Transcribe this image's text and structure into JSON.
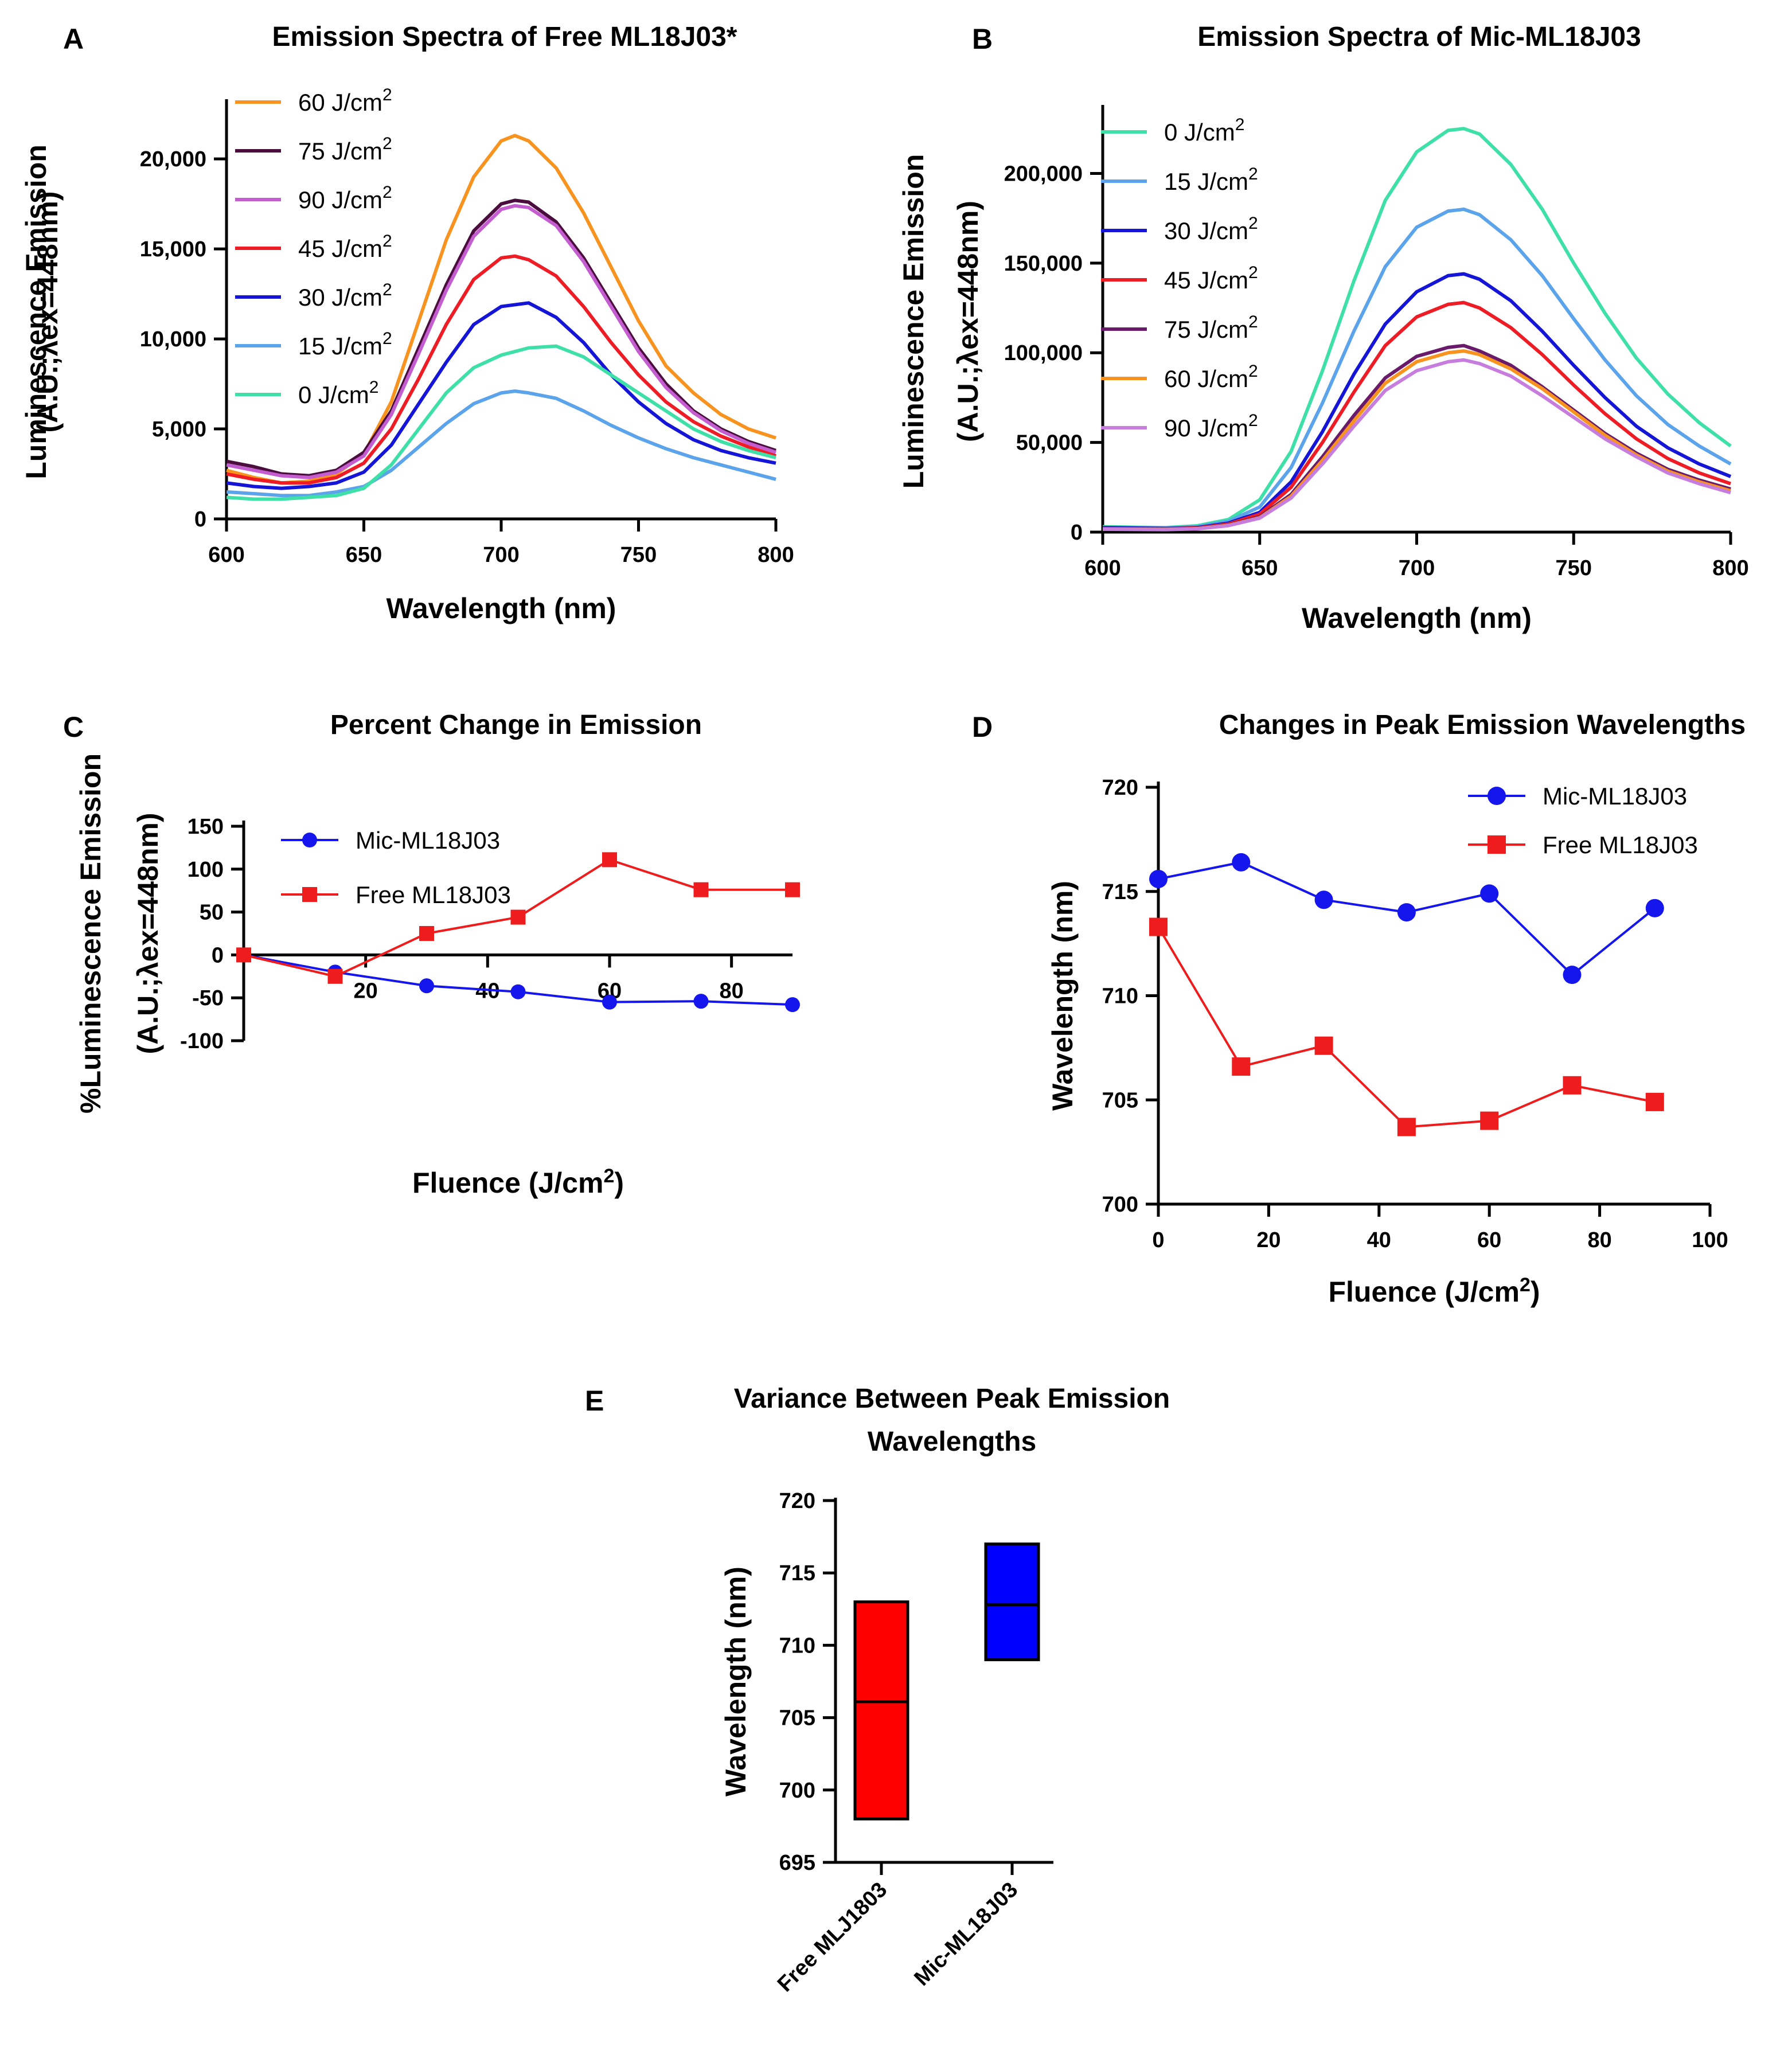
{
  "chart_data": [
    {
      "id": "A",
      "panel_letter": "A",
      "type": "line",
      "title": "Emission Spectra of Free ML18J03*",
      "xlabel": "Wavelength (nm)",
      "ylabel_line1": "Luminescence Emission",
      "ylabel_line2": "(A.U.;λex=448nm)",
      "xlim": [
        600,
        800
      ],
      "ylim": [
        0,
        23000
      ],
      "xticks": [
        600,
        650,
        700,
        750,
        800
      ],
      "yticks": [
        0,
        5000,
        10000,
        15000,
        20000
      ],
      "ytick_labels": [
        "0",
        "5,000",
        "10,000",
        "15,000",
        "20,000"
      ],
      "x": [
        600,
        610,
        620,
        630,
        640,
        650,
        660,
        670,
        680,
        690,
        700,
        705,
        710,
        720,
        730,
        740,
        750,
        760,
        770,
        780,
        790,
        800
      ],
      "series": [
        {
          "name": "60 J/cm2",
          "label": "60 J/cm",
          "sup": "2",
          "color": "#F7931E",
          "values": [
            2700,
            2300,
            2000,
            2100,
            2500,
            3600,
            6500,
            11000,
            15500,
            19000,
            21000,
            21300,
            21000,
            19500,
            17000,
            14000,
            11000,
            8500,
            7000,
            5800,
            5000,
            4500
          ]
        },
        {
          "name": "75 J/cm2",
          "label": "75 J/cm",
          "sup": "2",
          "color": "#4A0D3E",
          "values": [
            3200,
            2900,
            2500,
            2400,
            2700,
            3700,
            6000,
            9500,
            13000,
            16000,
            17500,
            17700,
            17600,
            16500,
            14500,
            12000,
            9500,
            7500,
            6000,
            5000,
            4300,
            3800
          ]
        },
        {
          "name": "90 J/cm2",
          "label": "90 J/cm",
          "sup": "2",
          "color": "#C35DD0",
          "values": [
            3000,
            2700,
            2400,
            2300,
            2600,
            3500,
            5800,
            9200,
            12700,
            15700,
            17200,
            17400,
            17300,
            16300,
            14300,
            11800,
            9300,
            7300,
            5900,
            4900,
            4200,
            3700
          ]
        },
        {
          "name": "45 J/cm2",
          "label": "45 J/cm",
          "sup": "2",
          "color": "#EE1C25",
          "values": [
            2500,
            2200,
            2000,
            2000,
            2300,
            3100,
            5000,
            7800,
            10800,
            13300,
            14500,
            14600,
            14400,
            13500,
            11800,
            9800,
            8000,
            6500,
            5400,
            4600,
            4000,
            3500
          ]
        },
        {
          "name": "30 J/cm2",
          "label": "30 J/cm",
          "sup": "2",
          "color": "#1515D8",
          "values": [
            2000,
            1800,
            1700,
            1800,
            2000,
            2600,
            4100,
            6400,
            8700,
            10800,
            11800,
            11900,
            12000,
            11200,
            9800,
            8000,
            6500,
            5300,
            4400,
            3800,
            3400,
            3100
          ]
        },
        {
          "name": "15 J/cm2",
          "label": "15 J/cm",
          "sup": "2",
          "color": "#5BA3EA",
          "values": [
            1500,
            1400,
            1300,
            1300,
            1500,
            1800,
            2700,
            4000,
            5300,
            6400,
            7000,
            7100,
            7000,
            6700,
            6000,
            5200,
            4500,
            3900,
            3400,
            3000,
            2600,
            2200
          ]
        },
        {
          "name": "0 J/cm2",
          "label": "0 J/cm",
          "sup": "2",
          "color": "#3FE0A8",
          "values": [
            1200,
            1100,
            1100,
            1200,
            1300,
            1700,
            3000,
            5000,
            7000,
            8400,
            9100,
            9300,
            9500,
            9600,
            9000,
            8000,
            7000,
            6000,
            5000,
            4300,
            3800,
            3400
          ]
        }
      ]
    },
    {
      "id": "B",
      "panel_letter": "B",
      "type": "line",
      "title": "Emission Spectra of Mic-ML18J03",
      "xlabel": "Wavelength (nm)",
      "ylabel_line1": "Luminescence Emission",
      "ylabel_line2": "(A.U.;λex=448nm)",
      "xlim": [
        600,
        800
      ],
      "ylim": [
        0,
        235000
      ],
      "xticks": [
        600,
        650,
        700,
        750,
        800
      ],
      "yticks": [
        0,
        50000,
        100000,
        150000,
        200000
      ],
      "ytick_labels": [
        "0",
        "50,000",
        "100,000",
        "150,000",
        "200,000"
      ],
      "x": [
        600,
        620,
        630,
        640,
        650,
        660,
        670,
        680,
        690,
        700,
        710,
        715,
        720,
        730,
        740,
        750,
        760,
        770,
        780,
        790,
        800
      ],
      "series": [
        {
          "name": "0 J/cm2",
          "label": "0 J/cm",
          "sup": "2",
          "color": "#3FE0A8",
          "values": [
            3000,
            2500,
            3500,
            7000,
            18000,
            45000,
            90000,
            140000,
            185000,
            212000,
            224000,
            225000,
            222000,
            205000,
            180000,
            150000,
            122000,
            97000,
            77000,
            61000,
            48000
          ]
        },
        {
          "name": "15 J/cm2",
          "label": "15 J/cm",
          "sup": "2",
          "color": "#5BA3EA",
          "values": [
            2500,
            2200,
            3000,
            6000,
            14000,
            36000,
            72000,
            112000,
            148000,
            170000,
            179000,
            180000,
            177000,
            163000,
            143000,
            119000,
            96000,
            76000,
            60000,
            48000,
            38000
          ]
        },
        {
          "name": "30 J/cm2",
          "label": "30 J/cm",
          "sup": "2",
          "color": "#1515D8",
          "values": [
            2500,
            2000,
            2500,
            5000,
            11000,
            28000,
            56000,
            88000,
            116000,
            134000,
            143000,
            144000,
            141000,
            129000,
            112000,
            93000,
            75000,
            59000,
            47000,
            38000,
            31000
          ]
        },
        {
          "name": "45 J/cm2",
          "label": "45 J/cm",
          "sup": "2",
          "color": "#EE1C25",
          "values": [
            2000,
            1800,
            2300,
            4500,
            10000,
            25000,
            50000,
            78000,
            104000,
            120000,
            127000,
            128000,
            125000,
            114000,
            99000,
            82000,
            66000,
            52000,
            41000,
            33000,
            27000
          ]
        },
        {
          "name": "75 J/cm2",
          "label": "75 J/cm",
          "sup": "2",
          "color": "#6A1A6A",
          "values": [
            1800,
            1600,
            2000,
            4000,
            8500,
            21000,
            42000,
            65000,
            86000,
            98000,
            103000,
            104000,
            101000,
            93000,
            81000,
            68000,
            55000,
            44000,
            35000,
            29000,
            24000
          ]
        },
        {
          "name": "60 J/cm2",
          "label": "60 J/cm",
          "sup": "2",
          "color": "#F7931E",
          "values": [
            1700,
            1500,
            1900,
            3800,
            8000,
            20000,
            40000,
            62000,
            83000,
            95000,
            100000,
            101000,
            99000,
            91000,
            80000,
            67000,
            54000,
            43000,
            34000,
            28000,
            23000
          ]
        },
        {
          "name": "90 J/cm2",
          "label": "90 J/cm",
          "sup": "2",
          "color": "#C77DDE",
          "values": [
            1600,
            1400,
            1800,
            3600,
            7800,
            19000,
            38000,
            59000,
            79000,
            90000,
            95000,
            96000,
            94000,
            87000,
            76000,
            64000,
            52000,
            42000,
            33000,
            27000,
            22000
          ]
        }
      ]
    },
    {
      "id": "C",
      "panel_letter": "C",
      "type": "line",
      "title": "Percent Change in Emission",
      "xlabel": "Fluence (J/cm",
      "xlabel_sup": "2",
      "xlabel_end": ")",
      "ylabel_line1": "%Luminescence Emission",
      "ylabel_line2": "(A.U.;λex=448nm)",
      "xlim": [
        0,
        90
      ],
      "ylim": [
        -100,
        150
      ],
      "xticks": [
        20,
        40,
        60,
        80
      ],
      "yticks": [
        -100,
        -50,
        0,
        50,
        100,
        150
      ],
      "ytick_labels": [
        "-100",
        "-50",
        "0",
        "50",
        "100",
        "150"
      ],
      "x": [
        0,
        15,
        30,
        45,
        60,
        75,
        90
      ],
      "series": [
        {
          "name": "Mic-ML18J03",
          "color": "#1515EE",
          "marker": "circle",
          "values": [
            0,
            -20,
            -36,
            -43,
            -55,
            -54,
            -58
          ]
        },
        {
          "name": "Free ML18J03",
          "color": "#EE1C1C",
          "marker": "square",
          "values": [
            0,
            -25,
            25,
            44,
            111,
            76,
            76
          ]
        }
      ]
    },
    {
      "id": "D",
      "panel_letter": "D",
      "type": "line",
      "title": "Changes in Peak Emission Wavelengths",
      "xlabel": "Fluence (J/cm",
      "xlabel_sup": "2",
      "xlabel_end": ")",
      "ylabel": "Wavelength (nm)",
      "xlim": [
        0,
        100
      ],
      "ylim": [
        700,
        720
      ],
      "xticks": [
        0,
        20,
        40,
        60,
        80,
        100
      ],
      "yticks": [
        700,
        705,
        710,
        715,
        720
      ],
      "ytick_labels": [
        "700",
        "705",
        "710",
        "715",
        "720"
      ],
      "x": [
        0,
        15,
        30,
        45,
        60,
        75,
        90
      ],
      "series": [
        {
          "name": "Mic-ML18J03",
          "color": "#1515EE",
          "marker": "circle",
          "values": [
            715.6,
            716.4,
            714.6,
            714.0,
            714.9,
            711.0,
            714.2
          ]
        },
        {
          "name": "Free ML18J03",
          "color": "#EE1C1C",
          "marker": "square",
          "values": [
            713.3,
            706.6,
            707.6,
            703.7,
            704.0,
            705.7,
            704.9
          ]
        }
      ]
    },
    {
      "id": "E",
      "panel_letter": "E",
      "type": "bar",
      "title_line1": "Variance Between Peak Emission",
      "title_line2": "Wavelengths",
      "ylabel": "Wavelength (nm)",
      "ylim": [
        695,
        720
      ],
      "yticks": [
        695,
        700,
        705,
        710,
        715,
        720
      ],
      "ytick_labels": [
        "695",
        "700",
        "705",
        "710",
        "715",
        "720"
      ],
      "categories": [
        "Free MLJ1803",
        "Mic-ML18J03"
      ],
      "boxes": [
        {
          "name": "Free MLJ1803",
          "min": 698,
          "max": 713,
          "mean": 706.1,
          "color": "#FF0000"
        },
        {
          "name": "Mic-ML18J03",
          "min": 709,
          "max": 717,
          "mean": 712.8,
          "color": "#0000FF"
        }
      ]
    }
  ]
}
